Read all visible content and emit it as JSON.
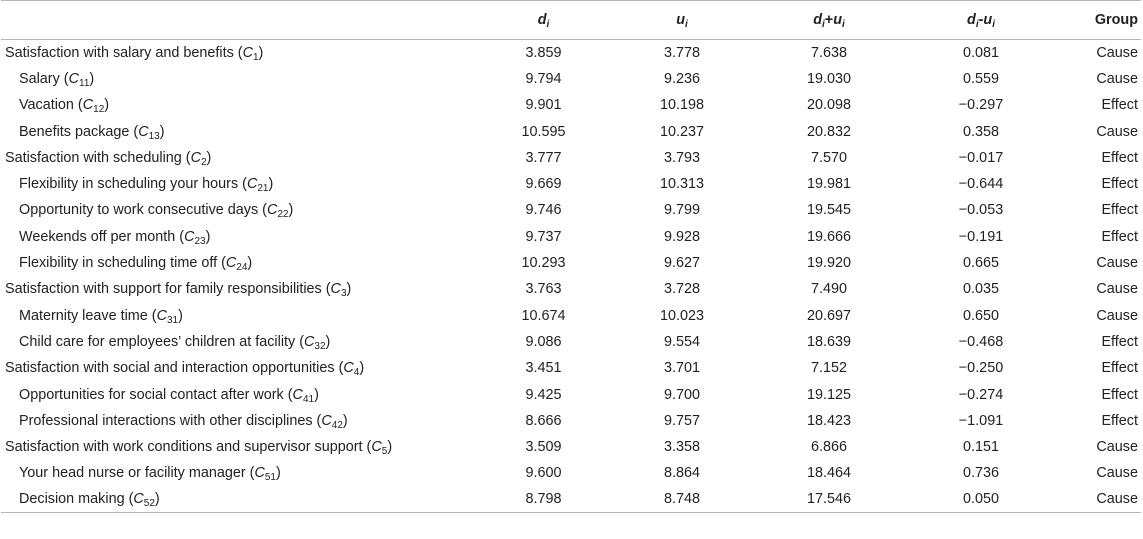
{
  "header": {
    "d_var": "d",
    "d_sub": "i",
    "u_var": "u",
    "u_sub": "i",
    "plus_op": "+",
    "minus_op": "-",
    "group": "Group"
  },
  "rows": [
    {
      "label": "Satisfaction with salary and benefits (",
      "code": "C",
      "code_sub": "1",
      "close": ")",
      "d": "3.859",
      "u": "3.778",
      "sum": "7.638",
      "diff": "0.081",
      "group": "Cause"
    },
    {
      "label": "Salary (",
      "code": "C",
      "code_sub": "11",
      "close": ")",
      "d": "9.794",
      "u": "9.236",
      "sum": "19.030",
      "diff": "0.559",
      "group": "Cause"
    },
    {
      "label": "Vacation (",
      "code": "C",
      "code_sub": "12",
      "close": ")",
      "d": "9.901",
      "u": "10.198",
      "sum": "20.098",
      "diff": "−0.297",
      "group": "Effect"
    },
    {
      "label": "Benefits package (",
      "code": "C",
      "code_sub": "13",
      "close": ")",
      "d": "10.595",
      "u": "10.237",
      "sum": "20.832",
      "diff": "0.358",
      "group": "Cause"
    },
    {
      "label": "Satisfaction with scheduling (",
      "code": "C",
      "code_sub": "2",
      "close": ")",
      "d": "3.777",
      "u": "3.793",
      "sum": "7.570",
      "diff": "−0.017",
      "group": "Effect"
    },
    {
      "label": "Flexibility in scheduling your hours (",
      "code": "C",
      "code_sub": "21",
      "close": ")",
      "d": "9.669",
      "u": "10.313",
      "sum": "19.981",
      "diff": "−0.644",
      "group": "Effect"
    },
    {
      "label": "Opportunity to work consecutive days (",
      "code": "C",
      "code_sub": "22",
      "close": ")",
      "d": "9.746",
      "u": "9.799",
      "sum": "19.545",
      "diff": "−0.053",
      "group": "Effect"
    },
    {
      "label": "Weekends off per month (",
      "code": "C",
      "code_sub": "23",
      "close": ")",
      "d": "9.737",
      "u": "9.928",
      "sum": "19.666",
      "diff": "−0.191",
      "group": "Effect"
    },
    {
      "label": "Flexibility in scheduling time off (",
      "code": "C",
      "code_sub": "24",
      "close": ")",
      "d": "10.293",
      "u": "9.627",
      "sum": "19.920",
      "diff": "0.665",
      "group": "Cause"
    },
    {
      "label": "Satisfaction with support for family responsibilities (",
      "code": "C",
      "code_sub": "3",
      "close": ")",
      "d": "3.763",
      "u": "3.728",
      "sum": "7.490",
      "diff": "0.035",
      "group": "Cause"
    },
    {
      "label": "Maternity leave time (",
      "code": "C",
      "code_sub": "31",
      "close": ")",
      "d": "10.674",
      "u": "10.023",
      "sum": "20.697",
      "diff": "0.650",
      "group": "Cause"
    },
    {
      "label": "Child care for employees’ children at facility (",
      "code": "C",
      "code_sub": "32",
      "close": ")",
      "d": "9.086",
      "u": "9.554",
      "sum": "18.639",
      "diff": "−0.468",
      "group": "Effect"
    },
    {
      "label": "Satisfaction with social and interaction opportunities (",
      "code": "C",
      "code_sub": "4",
      "close": ")",
      "d": "3.451",
      "u": "3.701",
      "sum": "7.152",
      "diff": "−0.250",
      "group": "Effect"
    },
    {
      "label": "Opportunities for social contact after work (",
      "code": "C",
      "code_sub": "41",
      "close": ")",
      "d": "9.425",
      "u": "9.700",
      "sum": "19.125",
      "diff": "−0.274",
      "group": "Effect"
    },
    {
      "label": "Professional interactions with other disciplines (",
      "code": "C",
      "code_sub": "42",
      "close": ")",
      "d": "8.666",
      "u": "9.757",
      "sum": "18.423",
      "diff": "−1.091",
      "group": "Effect"
    },
    {
      "label": "Satisfaction with work conditions and supervisor support (",
      "code": "C",
      "code_sub": "5",
      "close": ")",
      "d": "3.509",
      "u": "3.358",
      "sum": "6.866",
      "diff": "0.151",
      "group": "Cause"
    },
    {
      "label": "Your head nurse or facility manager (",
      "code": "C",
      "code_sub": "51",
      "close": ")",
      "d": "9.600",
      "u": "8.864",
      "sum": "18.464",
      "diff": "0.736",
      "group": "Cause"
    },
    {
      "label": "Decision making (",
      "code": "C",
      "code_sub": "52",
      "close": ")",
      "d": "8.798",
      "u": "8.748",
      "sum": "17.546",
      "diff": "0.050",
      "group": "Cause"
    }
  ]
}
